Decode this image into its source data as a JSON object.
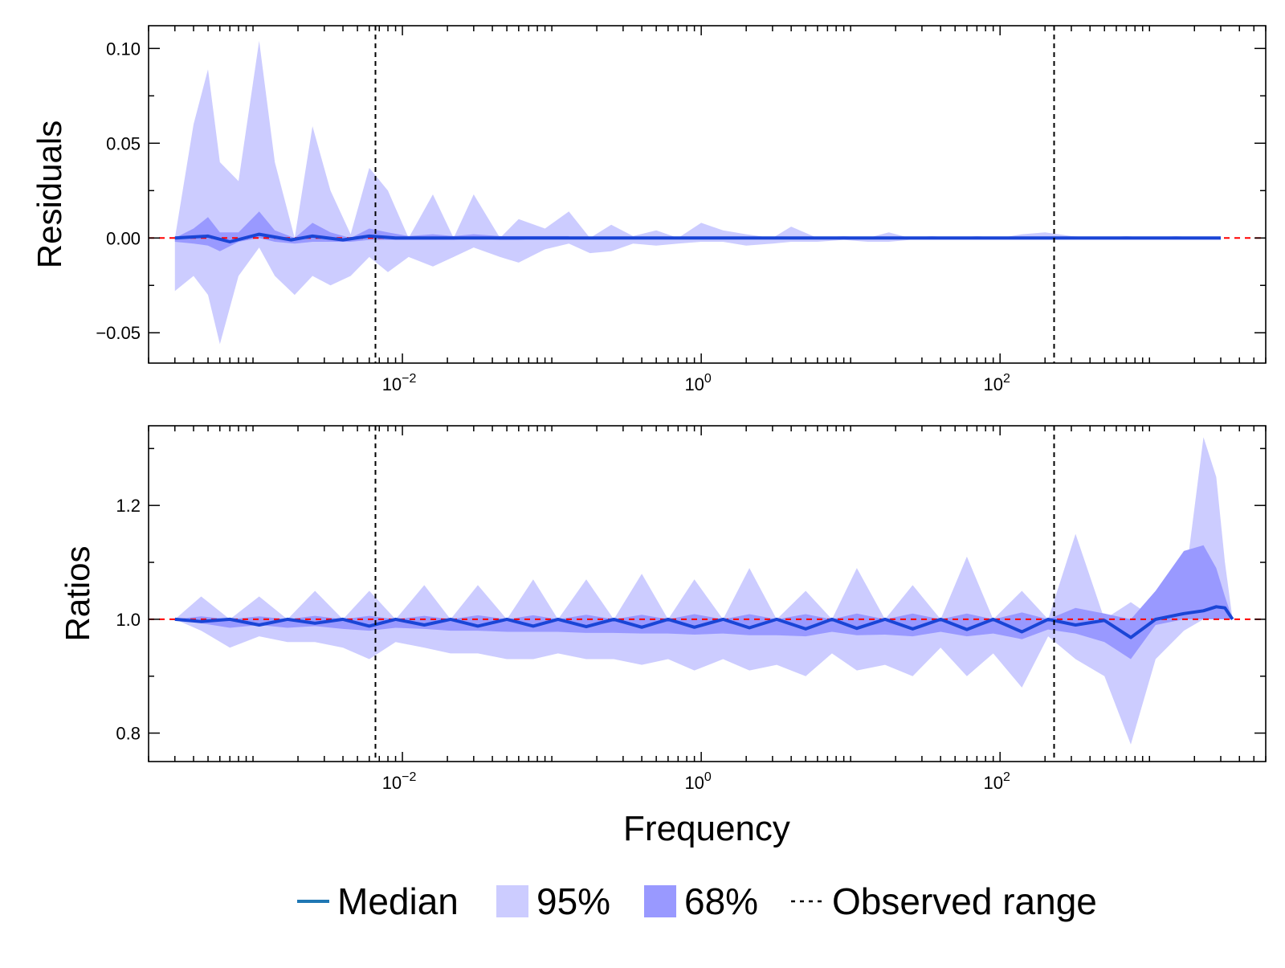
{
  "figure": {
    "xlabel": "Frequency",
    "legend": {
      "placement": "bottom-center",
      "items": [
        {
          "kind": "line",
          "label": "Median",
          "color": "#1f77b4"
        },
        {
          "kind": "patch",
          "label": "95%",
          "color": "#ccccff"
        },
        {
          "kind": "patch",
          "label": "68%",
          "color": "#9999ff"
        },
        {
          "kind": "dashed",
          "label": "Observed range",
          "color": "#000000"
        }
      ]
    },
    "colors": {
      "band95": "#ccccff",
      "band68": "#9999ff",
      "median": "#1a45d6",
      "reference": "#ff0000",
      "observed": "#000000"
    }
  },
  "chart_data": [
    {
      "type": "area",
      "title": "",
      "ylabel": "Residuals",
      "xlabel": "",
      "x_scale": "log",
      "xlim": [
        0.0002,
        6000
      ],
      "ylim": [
        -0.066,
        0.112
      ],
      "xticks": [
        {
          "value": 0.01,
          "base": "10",
          "exp": "−2"
        },
        {
          "value": 1,
          "base": "10",
          "exp": "0"
        },
        {
          "value": 100,
          "base": "10",
          "exp": "2"
        }
      ],
      "yticks": [
        {
          "value": 0.1,
          "label": "0.10"
        },
        {
          "value": 0.05,
          "label": "0.05"
        },
        {
          "value": 0.0,
          "label": "0.00"
        },
        {
          "value": -0.05,
          "label": "−0.05"
        }
      ],
      "reference_line": 0.0,
      "observed_range": [
        0.0066,
        230
      ],
      "grid": false,
      "series": [
        {
          "name": "95%",
          "x": [
            0.0003,
            0.0004,
            0.0005,
            0.0006,
            0.0008,
            0.0011,
            0.0014,
            0.0019,
            0.0025,
            0.0033,
            0.0045,
            0.006,
            0.008,
            0.011,
            0.016,
            0.022,
            0.03,
            0.045,
            0.06,
            0.09,
            0.13,
            0.18,
            0.25,
            0.35,
            0.5,
            0.7,
            1.0,
            1.4,
            2,
            3,
            4,
            6,
            9,
            13,
            18,
            25,
            35,
            50,
            70,
            100,
            140,
            200,
            300,
            450,
            700,
            1000,
            1500,
            2200,
            3000
          ],
          "upper": [
            0.0,
            0.06,
            0.089,
            0.04,
            0.03,
            0.104,
            0.04,
            0.0,
            0.059,
            0.025,
            0.002,
            0.037,
            0.025,
            0.0,
            0.023,
            0.0,
            0.023,
            0.0,
            0.01,
            0.005,
            0.014,
            0.0,
            0.007,
            0.001,
            0.004,
            0.0,
            0.008,
            0.004,
            0.002,
            0.0,
            0.006,
            0.0,
            0.001,
            0.0,
            0.003,
            0.0,
            0.001,
            0.0,
            0.001,
            0.0,
            0.002,
            0.003,
            0.001,
            0.0,
            0.001,
            0.0,
            0.001,
            0.0,
            0.0
          ],
          "lower": [
            -0.028,
            -0.02,
            -0.03,
            -0.056,
            -0.02,
            -0.005,
            -0.02,
            -0.03,
            -0.02,
            -0.025,
            -0.02,
            -0.01,
            -0.018,
            -0.01,
            -0.015,
            -0.01,
            -0.005,
            -0.01,
            -0.013,
            -0.006,
            -0.003,
            -0.008,
            -0.007,
            -0.003,
            -0.004,
            -0.003,
            -0.002,
            -0.002,
            -0.004,
            -0.003,
            -0.002,
            -0.002,
            -0.001,
            -0.002,
            -0.002,
            -0.001,
            -0.001,
            -0.001,
            -0.001,
            -0.001,
            -0.001,
            -0.001,
            -0.001,
            -0.001,
            -0.001,
            -0.001,
            -0.001,
            -0.001,
            -0.001
          ]
        },
        {
          "name": "68%",
          "x": [
            0.0003,
            0.0004,
            0.0005,
            0.0006,
            0.0008,
            0.0011,
            0.0014,
            0.0019,
            0.0025,
            0.0033,
            0.0045,
            0.006,
            0.008,
            0.011,
            0.016,
            0.022,
            0.03,
            0.045,
            0.06,
            0.09,
            0.13
          ],
          "upper": [
            0.0,
            0.005,
            0.011,
            0.003,
            0.003,
            0.014,
            0.004,
            0.0,
            0.008,
            0.003,
            0.0,
            0.005,
            0.003,
            0.001,
            0.002,
            0.001,
            0.002,
            0.001,
            0.001,
            0.001,
            0.001
          ],
          "lower": [
            -0.002,
            -0.003,
            -0.004,
            -0.007,
            -0.002,
            0.0,
            -0.002,
            -0.003,
            -0.002,
            -0.002,
            -0.002,
            -0.001,
            -0.001,
            -0.001,
            -0.001,
            -0.001,
            0.0,
            -0.001,
            -0.001,
            0.0,
            0.0
          ]
        },
        {
          "name": "Median",
          "x": [
            0.0003,
            0.0005,
            0.0007,
            0.0011,
            0.0018,
            0.0025,
            0.004,
            0.006,
            0.009,
            0.015,
            0.03,
            0.1,
            1,
            10,
            100,
            1000,
            3000
          ],
          "y": [
            0.0,
            0.001,
            -0.002,
            0.002,
            -0.001,
            0.001,
            -0.001,
            0.001,
            0.0,
            0.0,
            0.0,
            0.0,
            0.0,
            0.0,
            0.0,
            0.0,
            0.0
          ]
        }
      ]
    },
    {
      "type": "area",
      "title": "",
      "ylabel": "Ratios",
      "xlabel": "Frequency",
      "x_scale": "log",
      "xlim": [
        0.0002,
        6000
      ],
      "ylim": [
        0.75,
        1.34
      ],
      "xticks": [
        {
          "value": 0.01,
          "base": "10",
          "exp": "−2"
        },
        {
          "value": 1,
          "base": "10",
          "exp": "0"
        },
        {
          "value": 100,
          "base": "10",
          "exp": "2"
        }
      ],
      "yticks": [
        {
          "value": 1.2,
          "label": "1.2"
        },
        {
          "value": 1.0,
          "label": "1.0"
        },
        {
          "value": 0.8,
          "label": "0.8"
        }
      ],
      "reference_line": 1.0,
      "observed_range": [
        0.0066,
        230
      ],
      "grid": false,
      "series": [
        {
          "name": "95%",
          "x": [
            0.0003,
            0.00045,
            0.0007,
            0.0011,
            0.0017,
            0.0026,
            0.004,
            0.006,
            0.009,
            0.014,
            0.021,
            0.032,
            0.05,
            0.075,
            0.11,
            0.17,
            0.26,
            0.4,
            0.6,
            0.9,
            1.4,
            2.1,
            3.2,
            5,
            7.5,
            11,
            17,
            26,
            40,
            60,
            90,
            140,
            210,
            320,
            500,
            750,
            1100,
            1700,
            2300,
            2800,
            3200,
            3600
          ],
          "upper": [
            1.0,
            1.04,
            1.0,
            1.04,
            1.0,
            1.05,
            1.0,
            1.05,
            1.0,
            1.06,
            1.0,
            1.06,
            1.0,
            1.07,
            1.0,
            1.07,
            1.0,
            1.08,
            1.0,
            1.07,
            1.0,
            1.09,
            1.0,
            1.05,
            1.0,
            1.09,
            1.0,
            1.06,
            1.0,
            1.11,
            1.0,
            1.05,
            1.0,
            1.15,
            1.0,
            1.03,
            1.0,
            1.05,
            1.32,
            1.25,
            1.1,
            1.0
          ],
          "lower": [
            1.0,
            0.98,
            0.95,
            0.97,
            0.96,
            0.96,
            0.95,
            0.93,
            0.96,
            0.95,
            0.94,
            0.94,
            0.93,
            0.93,
            0.94,
            0.93,
            0.93,
            0.92,
            0.93,
            0.91,
            0.93,
            0.91,
            0.92,
            0.9,
            0.94,
            0.91,
            0.92,
            0.9,
            0.95,
            0.9,
            0.94,
            0.88,
            0.97,
            0.93,
            0.9,
            0.78,
            0.93,
            0.98,
            1.0,
            1.0,
            1.0,
            1.0
          ]
        },
        {
          "name": "68%",
          "x": [
            0.0003,
            0.00045,
            0.0007,
            0.0011,
            0.0017,
            0.0026,
            0.004,
            0.006,
            0.009,
            0.014,
            0.021,
            0.032,
            0.05,
            0.075,
            0.11,
            0.17,
            0.26,
            0.4,
            0.6,
            0.9,
            1.4,
            2.1,
            3.2,
            5,
            7.5,
            11,
            17,
            26,
            40,
            60,
            90,
            140,
            210,
            320,
            500,
            750,
            1100,
            1700,
            2300,
            2800,
            3200,
            3600
          ],
          "upper": [
            1.0,
            1.005,
            1.0,
            1.005,
            1.0,
            1.006,
            1.0,
            1.006,
            1.0,
            1.006,
            1.0,
            1.007,
            1.0,
            1.007,
            1.0,
            1.008,
            1.0,
            1.008,
            1.0,
            1.009,
            1.0,
            1.009,
            1.0,
            1.009,
            1.0,
            1.01,
            1.0,
            1.01,
            1.0,
            1.01,
            1.0,
            1.012,
            1.0,
            1.02,
            1.01,
            1.0,
            1.05,
            1.12,
            1.13,
            1.09,
            1.04,
            1.0
          ],
          "lower": [
            1.0,
            0.993,
            0.985,
            0.99,
            0.985,
            0.988,
            0.983,
            0.98,
            0.985,
            0.983,
            0.98,
            0.98,
            0.978,
            0.978,
            0.978,
            0.976,
            0.976,
            0.975,
            0.975,
            0.973,
            0.975,
            0.972,
            0.972,
            0.97,
            0.978,
            0.972,
            0.973,
            0.97,
            0.978,
            0.97,
            0.975,
            0.965,
            0.982,
            0.975,
            0.96,
            0.93,
            0.99,
            1.0,
            1.0,
            1.0,
            1.0,
            1.0
          ]
        },
        {
          "name": "Median",
          "x": [
            0.0003,
            0.00045,
            0.0007,
            0.0011,
            0.0017,
            0.0026,
            0.004,
            0.006,
            0.009,
            0.014,
            0.021,
            0.032,
            0.05,
            0.075,
            0.11,
            0.17,
            0.26,
            0.4,
            0.6,
            0.9,
            1.4,
            2.1,
            3.2,
            5,
            7.5,
            11,
            17,
            26,
            40,
            60,
            90,
            140,
            210,
            320,
            500,
            750,
            1100,
            1700,
            2300,
            2800,
            3200,
            3600
          ],
          "y": [
            1.0,
            0.996,
            1.0,
            0.99,
            1.0,
            0.993,
            1.0,
            0.988,
            1.0,
            0.99,
            1.0,
            0.988,
            1.0,
            0.988,
            1.0,
            0.987,
            1.0,
            0.986,
            1.0,
            0.986,
            1.0,
            0.985,
            1.0,
            0.983,
            1.0,
            0.984,
            1.0,
            0.983,
            1.0,
            0.982,
            1.0,
            0.978,
            1.0,
            0.99,
            0.998,
            0.968,
            1.0,
            1.01,
            1.015,
            1.022,
            1.02,
            1.0
          ]
        }
      ]
    }
  ]
}
